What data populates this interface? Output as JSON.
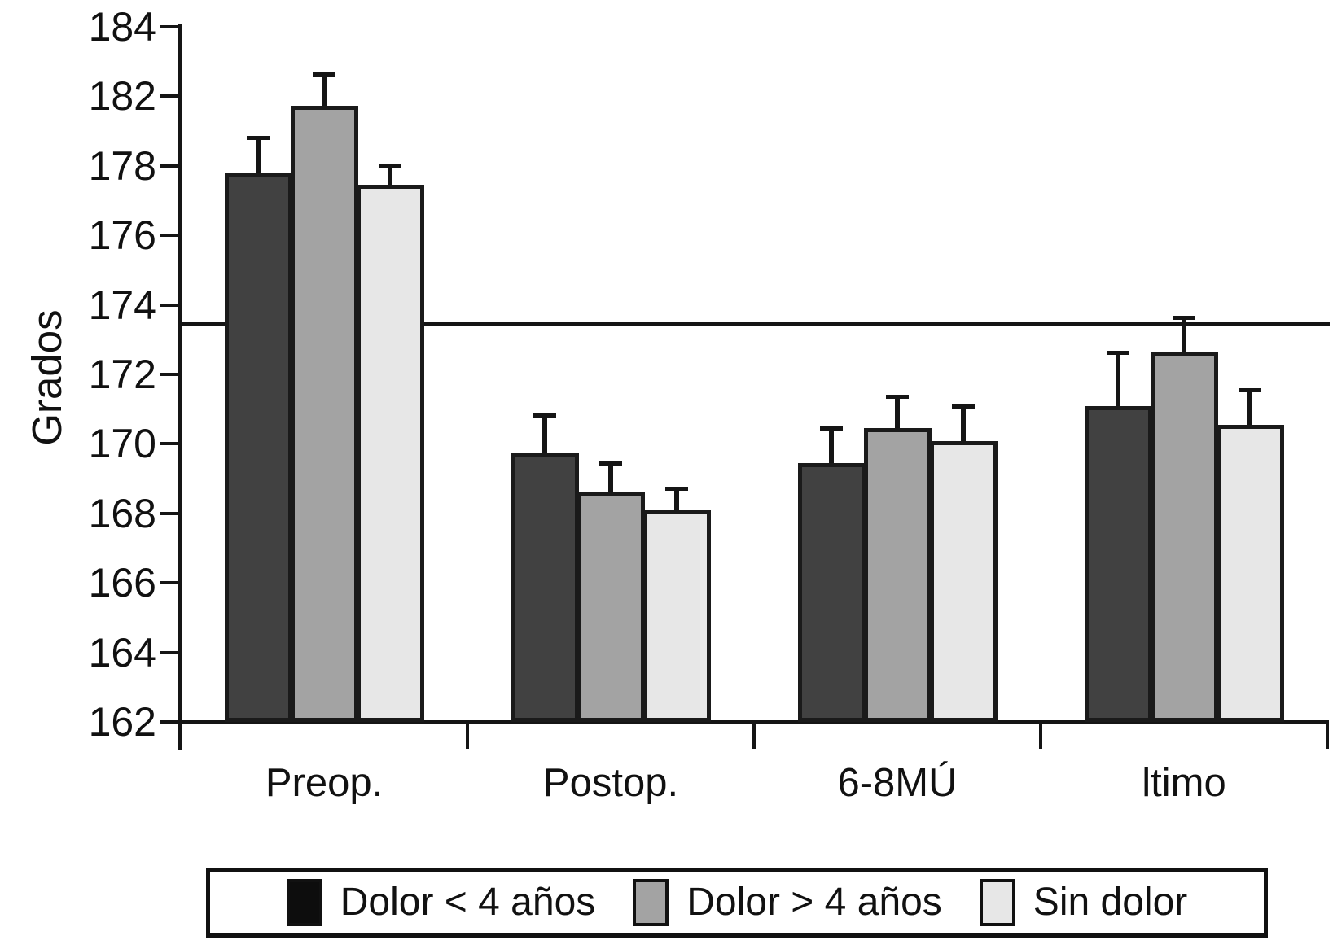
{
  "chart_data": {
    "type": "bar",
    "title": "",
    "ylabel": "Grados",
    "xlabel": "",
    "ylim": [
      162,
      184
    ],
    "ytick_labels": [
      "184",
      "182",
      "178",
      "176",
      "174",
      "172",
      "170",
      "168",
      "166",
      "164",
      "162"
    ],
    "categories": [
      "Preop.",
      "Postop.",
      "6-8MÚ",
      "ltimo"
    ],
    "series": [
      {
        "name": "Dolor < 4 años",
        "color": "#414141",
        "legend_color": "#0d0d0d",
        "values": [
          179.4,
          170.5,
          170.2,
          172.0
        ],
        "errors_plus": [
          1.1,
          1.2,
          1.1,
          1.7
        ]
      },
      {
        "name": "Dolor > 4 años",
        "color": "#a3a3a3",
        "legend_color": "#a3a3a3",
        "values": [
          181.5,
          169.3,
          171.3,
          173.7
        ],
        "errors_plus": [
          1.0,
          0.9,
          1.0,
          1.1
        ]
      },
      {
        "name": "Sin dolor",
        "color": "#e7e7e7",
        "legend_color": "#e7e7e7",
        "values": [
          179.0,
          168.7,
          170.9,
          171.4
        ],
        "errors_plus": [
          0.6,
          0.7,
          1.1,
          1.1
        ]
      }
    ],
    "reference_line": 174.6,
    "error_bars": "upper only",
    "grid": false,
    "legend_position": "bottom",
    "axis_color": "#151515"
  }
}
